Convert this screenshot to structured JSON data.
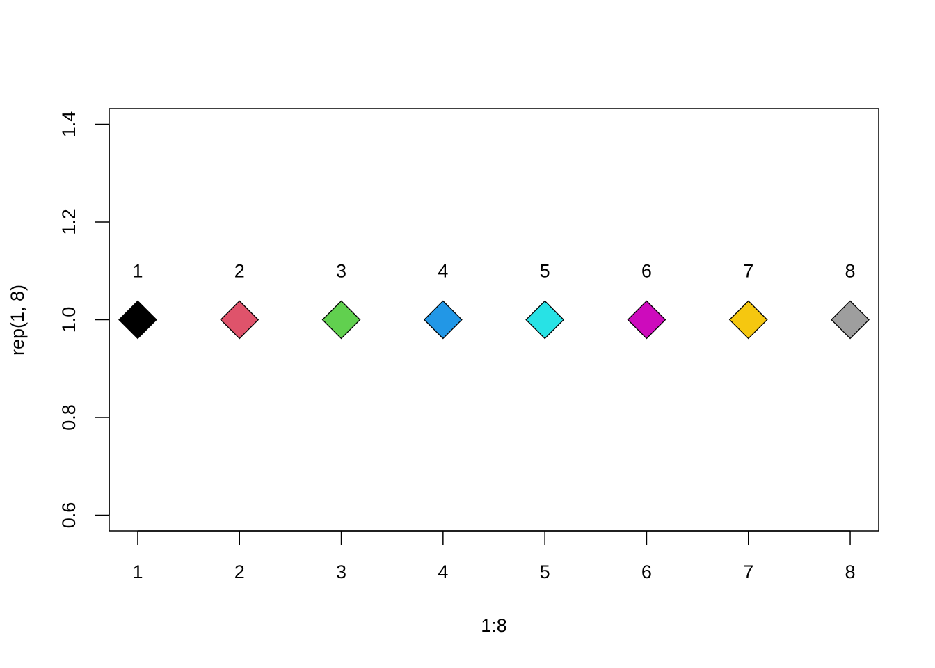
{
  "chart_data": {
    "type": "scatter",
    "xlabel": "1:8",
    "ylabel": "rep(1, 8)",
    "x": [
      1,
      2,
      3,
      4,
      5,
      6,
      7,
      8
    ],
    "y": [
      1,
      1,
      1,
      1,
      1,
      1,
      1,
      1
    ],
    "labels": [
      "1",
      "2",
      "3",
      "4",
      "5",
      "6",
      "7",
      "8"
    ],
    "colors": [
      "#000000",
      "#DF536B",
      "#61D04F",
      "#2297E6",
      "#28E2E5",
      "#CD0BBC",
      "#F5C710",
      "#9E9E9E"
    ],
    "marker": "diamond",
    "edge_color": "#000000",
    "xlim": [
      0.72,
      8.28
    ],
    "ylim": [
      0.568,
      1.432
    ],
    "xticks": [
      1,
      2,
      3,
      4,
      5,
      6,
      7,
      8
    ],
    "yticks": [
      0.6,
      0.8,
      {
        "value": 1,
        "label": "1.0"
      },
      1.2,
      1.4
    ],
    "grid": false
  }
}
